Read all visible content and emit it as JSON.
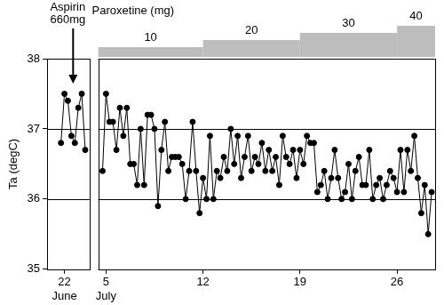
{
  "chart_data": {
    "type": "line",
    "y_label": "Ta (degC)",
    "categories": [
      null,
      null,
      null,
      null,
      null,
      [
        "22",
        "June"
      ],
      null,
      null,
      null,
      null,
      null,
      null,
      null,
      null,
      null,
      null,
      null,
      [
        "5",
        "July"
      ],
      null,
      null,
      null,
      null,
      null,
      null,
      null,
      null,
      null,
      null,
      null,
      null,
      null,
      null,
      null,
      null,
      null,
      null,
      null,
      null,
      null,
      null,
      null,
      null,
      null,
      null,
      null,
      "12",
      null,
      null,
      null,
      null,
      null,
      null,
      null,
      null,
      null,
      null,
      null,
      null,
      null,
      null,
      null,
      null,
      null,
      null,
      null,
      null,
      null,
      null,
      null,
      null,
      null,
      null,
      null,
      "19",
      null,
      null,
      null,
      null,
      null,
      null,
      null,
      null,
      null,
      null,
      null,
      null,
      null,
      null,
      null,
      null,
      null,
      null,
      null,
      null,
      null,
      null,
      null,
      null,
      null,
      null,
      null,
      "26",
      null,
      null,
      null,
      null,
      null,
      null,
      null,
      null,
      null,
      null,
      null
    ],
    "values": [
      null,
      null,
      null,
      null,
      36.8,
      37.5,
      37.4,
      36.9,
      36.8,
      37.3,
      37.5,
      36.7,
      null,
      null,
      null,
      null,
      36.4,
      37.5,
      37.1,
      37.1,
      36.7,
      37.3,
      36.9,
      37.3,
      36.5,
      36.5,
      36.2,
      37.0,
      36.2,
      37.2,
      37.2,
      37.0,
      35.9,
      36.7,
      37.1,
      36.4,
      36.6,
      36.6,
      36.6,
      36.5,
      36.0,
      36.4,
      37.1,
      36.4,
      35.8,
      36.3,
      36.0,
      36.9,
      36.0,
      36.4,
      36.3,
      36.6,
      36.4,
      37.0,
      36.5,
      36.9,
      36.3,
      36.6,
      36.9,
      36.4,
      36.6,
      36.5,
      36.8,
      36.4,
      36.7,
      36.4,
      36.6,
      36.2,
      36.9,
      36.6,
      36.5,
      36.7,
      36.3,
      36.7,
      36.5,
      36.9,
      36.8,
      36.8,
      36.1,
      36.2,
      36.4,
      36.0,
      36.3,
      36.7,
      36.3,
      36.0,
      36.1,
      36.5,
      36.0,
      36.4,
      36.6,
      36.2,
      36.2,
      36.7,
      36.0,
      36.2,
      36.3,
      36.0,
      36.2,
      36.4,
      36.3,
      36.1,
      36.7,
      36.1,
      36.7,
      36.4,
      36.9,
      36.3,
      35.8,
      36.2,
      35.5,
      36.1,
      null
    ],
    "color": "#000000",
    "marker": "circle",
    "line_style": "solid",
    "ylim": [
      35,
      38
    ],
    "yticks": [
      35,
      36,
      37,
      38
    ],
    "grid": true,
    "paroxetine": {
      "label": "Paroxetine (mg)",
      "doses": [
        10,
        20,
        30,
        40
      ],
      "start": [
        "5",
        "12",
        "19",
        "26"
      ]
    },
    "annotations": [
      {
        "text": [
          "Aspirin",
          "660mg"
        ],
        "at": "22"
      }
    ]
  }
}
